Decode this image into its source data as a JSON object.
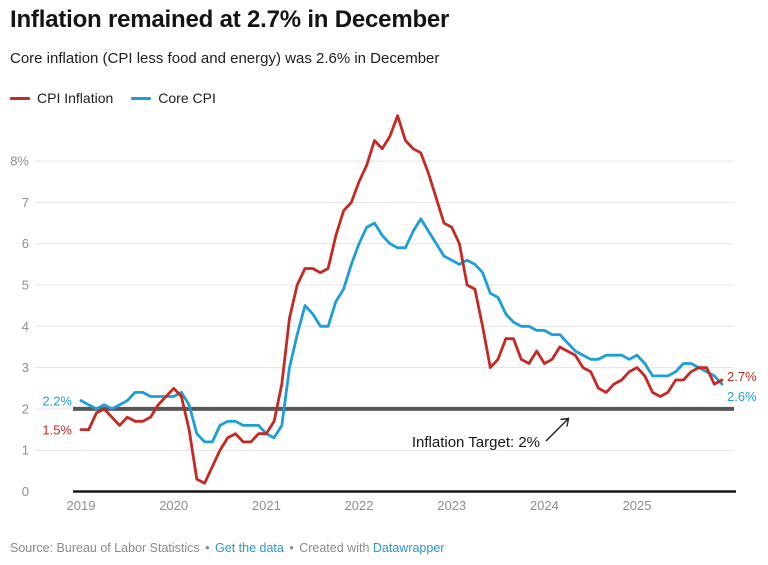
{
  "header": {
    "title": "Inflation remained at 2.7% in December",
    "subtitle": "Core inflation (CPI less food and energy) was 2.6% in December"
  },
  "chart_data": {
    "type": "line",
    "x_start": "2019-01",
    "x_end": "2025-12",
    "x_unit": "month",
    "y_unit": "%",
    "ylim": [
      0,
      9.3
    ],
    "grid": true,
    "legend_position": "top-left",
    "y_ticks": [
      {
        "value": 8,
        "label": "8%"
      },
      {
        "value": 7,
        "label": "7"
      },
      {
        "value": 6,
        "label": "6"
      },
      {
        "value": 5,
        "label": "5"
      },
      {
        "value": 4,
        "label": "4"
      },
      {
        "value": 3,
        "label": "3"
      },
      {
        "value": 2,
        "label": "2"
      },
      {
        "value": 1,
        "label": "1"
      },
      {
        "value": 0,
        "label": "0"
      }
    ],
    "x_ticks": [
      {
        "month_index": 0,
        "label": "2019"
      },
      {
        "month_index": 12,
        "label": "2020"
      },
      {
        "month_index": 24,
        "label": "2021"
      },
      {
        "month_index": 36,
        "label": "2022"
      },
      {
        "month_index": 48,
        "label": "2023"
      },
      {
        "month_index": 60,
        "label": "2024"
      },
      {
        "month_index": 72,
        "label": "2025"
      }
    ],
    "target_line": {
      "value": 2,
      "label": "Inflation Target: 2%",
      "color": "#58585a"
    },
    "series": [
      {
        "name": "CPI Inflation",
        "color": "#c42a23",
        "start_label": "1.5%",
        "end_label": "2.7%",
        "values": [
          1.5,
          1.5,
          1.9,
          2.0,
          1.8,
          1.6,
          1.8,
          1.7,
          1.7,
          1.8,
          2.1,
          2.3,
          2.5,
          2.3,
          1.5,
          0.3,
          0.2,
          0.6,
          1.0,
          1.3,
          1.4,
          1.2,
          1.2,
          1.4,
          1.4,
          1.7,
          2.6,
          4.2,
          5.0,
          5.4,
          5.4,
          5.3,
          5.4,
          6.2,
          6.8,
          7.0,
          7.5,
          7.9,
          8.5,
          8.3,
          8.6,
          9.1,
          8.5,
          8.3,
          8.2,
          7.7,
          7.1,
          6.5,
          6.4,
          6.0,
          5.0,
          4.9,
          4.0,
          3.0,
          3.2,
          3.7,
          3.7,
          3.2,
          3.1,
          3.4,
          3.1,
          3.2,
          3.5,
          3.4,
          3.3,
          3.0,
          2.9,
          2.5,
          2.4,
          2.6,
          2.7,
          2.9,
          3.0,
          2.8,
          2.4,
          2.3,
          2.4,
          2.7,
          2.7,
          2.9,
          3.0,
          3.0,
          2.6,
          2.7
        ]
      },
      {
        "name": "Core CPI",
        "color": "#1d9ed6",
        "start_label": "2.2%",
        "end_label": "2.6%",
        "values": [
          2.2,
          2.1,
          2.0,
          2.1,
          2.0,
          2.1,
          2.2,
          2.4,
          2.4,
          2.3,
          2.3,
          2.3,
          2.3,
          2.4,
          2.1,
          1.4,
          1.2,
          1.2,
          1.6,
          1.7,
          1.7,
          1.6,
          1.6,
          1.6,
          1.4,
          1.3,
          1.6,
          3.0,
          3.8,
          4.5,
          4.3,
          4.0,
          4.0,
          4.6,
          4.9,
          5.5,
          6.0,
          6.4,
          6.5,
          6.2,
          6.0,
          5.9,
          5.9,
          6.3,
          6.6,
          6.3,
          6.0,
          5.7,
          5.6,
          5.5,
          5.6,
          5.5,
          5.3,
          4.8,
          4.7,
          4.3,
          4.1,
          4.0,
          4.0,
          3.9,
          3.9,
          3.8,
          3.8,
          3.6,
          3.4,
          3.3,
          3.2,
          3.2,
          3.3,
          3.3,
          3.3,
          3.2,
          3.3,
          3.1,
          2.8,
          2.8,
          2.8,
          2.9,
          3.1,
          3.1,
          3.0,
          2.9,
          2.8,
          2.6
        ]
      }
    ]
  },
  "footer": {
    "source": "Source: Bureau of Labor Statistics",
    "separator": "•",
    "get_data_label": "Get the data",
    "created_with": "Created with",
    "datawrapper_label": "Datawrapper"
  }
}
